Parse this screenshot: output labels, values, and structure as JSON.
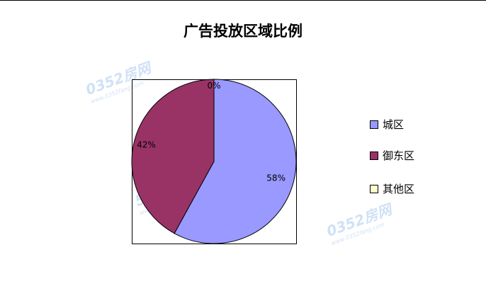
{
  "watermark": "0352房网 www.0352fang.com",
  "chart_data": {
    "type": "pie",
    "title": "广告投放区域比例",
    "categories": [
      "城区",
      "御东区",
      "其他区"
    ],
    "values": [
      58,
      42,
      0
    ],
    "labels": [
      "58%",
      "42%",
      "0%"
    ],
    "colors": [
      "#9999FF",
      "#993366",
      "#FFFFCC"
    ],
    "legend_placement": "right",
    "start": "top, clockwise"
  }
}
